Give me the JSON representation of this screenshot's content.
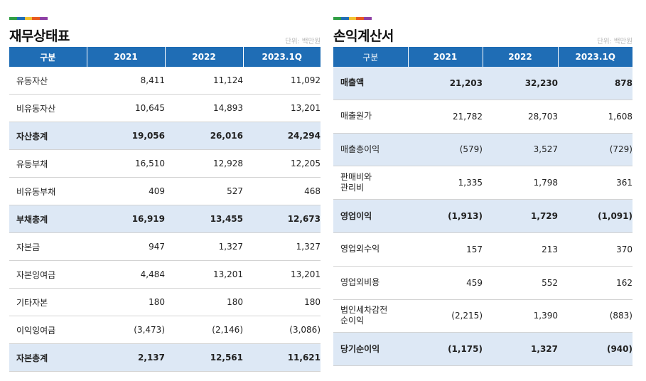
{
  "stripe_colors": [
    "#2f9e44",
    "#1f6db5",
    "#f2c230",
    "#e8591e",
    "#8e3fa4"
  ],
  "balance_sheet": {
    "title": "재무상태표",
    "unit": "단위: 백만원",
    "headers": [
      "구분",
      "2021",
      "2022",
      "2023.1Q"
    ],
    "rows": [
      {
        "label": "유동자산",
        "values": [
          "8,411",
          "11,124",
          "11,092"
        ],
        "total": false
      },
      {
        "label": "비유동자산",
        "values": [
          "10,645",
          "14,893",
          "13,201"
        ],
        "total": false
      },
      {
        "label": "자산총계",
        "values": [
          "19,056",
          "26,016",
          "24,294"
        ],
        "total": true
      },
      {
        "label": "유동부채",
        "values": [
          "16,510",
          "12,928",
          "12,205"
        ],
        "total": false
      },
      {
        "label": "비유동부채",
        "values": [
          "409",
          "527",
          "468"
        ],
        "total": false
      },
      {
        "label": "부채총계",
        "values": [
          "16,919",
          "13,455",
          "12,673"
        ],
        "total": true
      },
      {
        "label": "자본금",
        "values": [
          "947",
          "1,327",
          "1,327"
        ],
        "total": false
      },
      {
        "label": "자본잉여금",
        "values": [
          "4,484",
          "13,201",
          "13,201"
        ],
        "total": false
      },
      {
        "label": "기타자본",
        "values": [
          "180",
          "180",
          "180"
        ],
        "total": false
      },
      {
        "label": "이익잉여금",
        "values": [
          "(3,473)",
          "(2,146)",
          "(3,086)"
        ],
        "total": false
      },
      {
        "label": "자본총계",
        "values": [
          "2,137",
          "12,561",
          "11,621"
        ],
        "total": true
      }
    ]
  },
  "income_statement": {
    "title": "손익계산서",
    "unit": "단위: 백만원",
    "headers": [
      "구분",
      "2021",
      "2022",
      "2023.1Q"
    ],
    "rows": [
      {
        "label": "매출액",
        "values": [
          "21,203",
          "32,230",
          "878"
        ],
        "total": true
      },
      {
        "label": "매출원가",
        "values": [
          "21,782",
          "28,703",
          "1,608"
        ],
        "total": false
      },
      {
        "label": "매출총이익",
        "values": [
          "(579)",
          "3,527",
          "(729)"
        ],
        "total": true,
        "normal_weight": true
      },
      {
        "label": "판매비와\n관리비",
        "values": [
          "1,335",
          "1,798",
          "361"
        ],
        "total": false
      },
      {
        "label": "영업이익",
        "values": [
          "(1,913)",
          "1,729",
          "(1,091)"
        ],
        "total": true
      },
      {
        "label": "영업외수익",
        "values": [
          "157",
          "213",
          "370"
        ],
        "total": false
      },
      {
        "label": "영업외비용",
        "values": [
          "459",
          "552",
          "162"
        ],
        "total": false
      },
      {
        "label": "법인세차감전\n순이익",
        "values": [
          "(2,215)",
          "1,390",
          "(883)"
        ],
        "total": false
      },
      {
        "label": "당기순이익",
        "values": [
          "(1,175)",
          "1,327",
          "(940)"
        ],
        "total": true
      }
    ]
  }
}
